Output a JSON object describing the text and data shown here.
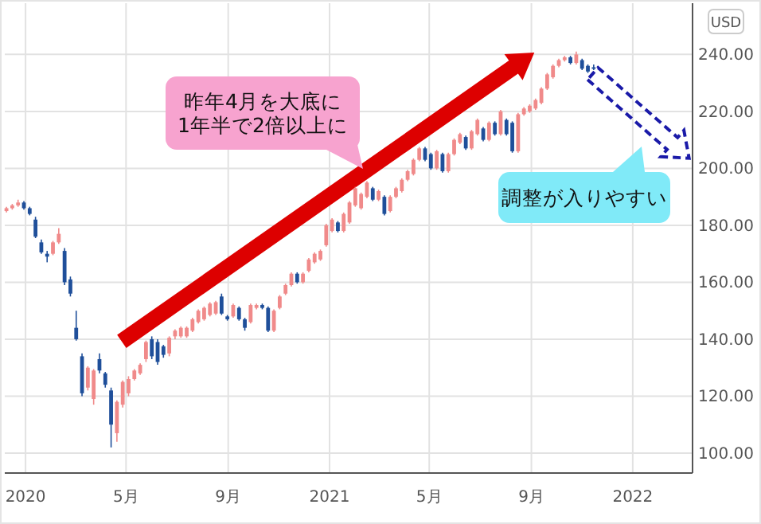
{
  "chart_data": {
    "type": "candlestick",
    "ylabel": "USD",
    "grid": true,
    "annotations": [
      "昨年4月を大底に\n1年半で2倍以上に",
      "調整が入りやすい"
    ],
    "xlim": [
      "2019-12-07",
      "2022-03-14"
    ],
    "ylim": [
      93,
      258
    ],
    "xticks": [
      {
        "value": "2020-01-01",
        "label": "2020"
      },
      {
        "value": "2020-05-01",
        "label": "5月"
      },
      {
        "value": "2020-09-01",
        "label": "9月"
      },
      {
        "value": "2021-01-01",
        "label": "2021"
      },
      {
        "value": "2021-05-01",
        "label": "5月"
      },
      {
        "value": "2021-09-01",
        "label": "9月"
      },
      {
        "value": "2022-01-01",
        "label": "2022"
      }
    ],
    "yticks": [
      {
        "value": 100,
        "label": "100.00"
      },
      {
        "value": 120,
        "label": "120.00"
      },
      {
        "value": 140,
        "label": "140.00"
      },
      {
        "value": 160,
        "label": "160.00"
      },
      {
        "value": 180,
        "label": "180.00"
      },
      {
        "value": 200,
        "label": "200.00"
      },
      {
        "value": 220,
        "label": "220.00"
      },
      {
        "value": 240,
        "label": "240.00"
      }
    ],
    "x": [
      "2019-12-09",
      "2019-12-16",
      "2019-12-23",
      "2019-12-30",
      "2020-01-06",
      "2020-01-13",
      "2020-01-20",
      "2020-01-27",
      "2020-02-03",
      "2020-02-10",
      "2020-02-17",
      "2020-02-24",
      "2020-03-02",
      "2020-03-09",
      "2020-03-16",
      "2020-03-23",
      "2020-03-30",
      "2020-04-06",
      "2020-04-13",
      "2020-04-20",
      "2020-04-27",
      "2020-05-04",
      "2020-05-11",
      "2020-05-18",
      "2020-05-25",
      "2020-06-01",
      "2020-06-08",
      "2020-06-15",
      "2020-06-22",
      "2020-06-29",
      "2020-07-06",
      "2020-07-13",
      "2020-07-20",
      "2020-07-27",
      "2020-08-03",
      "2020-08-10",
      "2020-08-17",
      "2020-08-24",
      "2020-08-31",
      "2020-09-07",
      "2020-09-14",
      "2020-09-21",
      "2020-09-28",
      "2020-10-05",
      "2020-10-12",
      "2020-10-19",
      "2020-10-26",
      "2020-11-02",
      "2020-11-09",
      "2020-11-16",
      "2020-11-23",
      "2020-11-30",
      "2020-12-07",
      "2020-12-14",
      "2020-12-21",
      "2020-12-28",
      "2021-01-04",
      "2021-01-11",
      "2021-01-18",
      "2021-01-25",
      "2021-02-01",
      "2021-02-08",
      "2021-02-15",
      "2021-02-22",
      "2021-03-01",
      "2021-03-08",
      "2021-03-15",
      "2021-03-22",
      "2021-03-29",
      "2021-04-05",
      "2021-04-12",
      "2021-04-19",
      "2021-04-26",
      "2021-05-03",
      "2021-05-10",
      "2021-05-17",
      "2021-05-24",
      "2021-05-31",
      "2021-06-07",
      "2021-06-14",
      "2021-06-21",
      "2021-06-28",
      "2021-07-05",
      "2021-07-12",
      "2021-07-19",
      "2021-07-26",
      "2021-08-02",
      "2021-08-09",
      "2021-08-16",
      "2021-08-23",
      "2021-08-30",
      "2021-09-06",
      "2021-09-13",
      "2021-09-20",
      "2021-09-27",
      "2021-10-04",
      "2021-10-11",
      "2021-10-18",
      "2021-10-25",
      "2021-11-01",
      "2021-11-08",
      "2021-11-15"
    ],
    "ohlc": [
      [
        185,
        186.5,
        184.5,
        186
      ],
      [
        186,
        187.5,
        185.5,
        187
      ],
      [
        187,
        189,
        186.5,
        188
      ],
      [
        188,
        188.5,
        185.5,
        186
      ],
      [
        186,
        186.5,
        183.5,
        184
      ],
      [
        182,
        183,
        175.5,
        176
      ],
      [
        174,
        175,
        170,
        170.5
      ],
      [
        170,
        171,
        167,
        169
      ],
      [
        170,
        174.5,
        169.5,
        174
      ],
      [
        174,
        179,
        173.5,
        177
      ],
      [
        171,
        172,
        159,
        160
      ],
      [
        161,
        162,
        155,
        156
      ],
      [
        144,
        150,
        139.5,
        140
      ],
      [
        134,
        135,
        120,
        121
      ],
      [
        123,
        130.5,
        122,
        130
      ],
      [
        119,
        129.5,
        117,
        129
      ],
      [
        133,
        135,
        128,
        129
      ],
      [
        128,
        128.5,
        123,
        124
      ],
      [
        122,
        123,
        102,
        110
      ],
      [
        107,
        118.5,
        104,
        118
      ],
      [
        117,
        125.5,
        116,
        125
      ],
      [
        121,
        127,
        120,
        126
      ],
      [
        126,
        129.5,
        125.5,
        129
      ],
      [
        128,
        131.5,
        127.5,
        131
      ],
      [
        133,
        139.5,
        132,
        139
      ],
      [
        140,
        141,
        133,
        134
      ],
      [
        139,
        140,
        131,
        132
      ],
      [
        137.5,
        138,
        133.5,
        134.5
      ],
      [
        135,
        141,
        134,
        140.5
      ],
      [
        141,
        143.5,
        140,
        143
      ],
      [
        141,
        144.5,
        140.5,
        144
      ],
      [
        141,
        144.5,
        140.5,
        144
      ],
      [
        143,
        147.5,
        142.5,
        147
      ],
      [
        146,
        150.5,
        145.5,
        150
      ],
      [
        147,
        151.5,
        146.5,
        151
      ],
      [
        148.5,
        153,
        148,
        152.5
      ],
      [
        149,
        153.5,
        148.5,
        153
      ],
      [
        155,
        156,
        148.5,
        149
      ],
      [
        148,
        148.5,
        146.5,
        147
      ],
      [
        148,
        152.5,
        147.5,
        152
      ],
      [
        151,
        151.5,
        146.5,
        147
      ],
      [
        147,
        147.5,
        143,
        144
      ],
      [
        146,
        152.5,
        145.5,
        152
      ],
      [
        151,
        152.5,
        150.5,
        152
      ],
      [
        152,
        152.5,
        150.5,
        151
      ],
      [
        151,
        151.5,
        142.5,
        143
      ],
      [
        143,
        150.5,
        142.5,
        150
      ],
      [
        151,
        155.5,
        150.5,
        155
      ],
      [
        156,
        159.5,
        155.5,
        159
      ],
      [
        159,
        163.5,
        158.5,
        163
      ],
      [
        163,
        163.5,
        159.5,
        160
      ],
      [
        160,
        163.5,
        159.5,
        163
      ],
      [
        164,
        168.5,
        163.5,
        168
      ],
      [
        167,
        170.5,
        166.5,
        170
      ],
      [
        168,
        171.5,
        167.5,
        171
      ],
      [
        173,
        180.5,
        172.5,
        180
      ],
      [
        178,
        182.5,
        177.5,
        182
      ],
      [
        181,
        181.5,
        177.5,
        178
      ],
      [
        178,
        184.5,
        177.5,
        184
      ],
      [
        181,
        188.5,
        180.5,
        188
      ],
      [
        187,
        193.5,
        186.5,
        193
      ],
      [
        186,
        191.5,
        185.5,
        191
      ],
      [
        190,
        195.5,
        189.5,
        195
      ],
      [
        193,
        193.5,
        188.5,
        189
      ],
      [
        189,
        192.5,
        188.5,
        192
      ],
      [
        190,
        190.5,
        183.5,
        184
      ],
      [
        185,
        190.5,
        184.5,
        190
      ],
      [
        190,
        193.5,
        189.5,
        193
      ],
      [
        192,
        196.5,
        191.5,
        196
      ],
      [
        196,
        199.5,
        195.5,
        199
      ],
      [
        198,
        203.5,
        197.5,
        203
      ],
      [
        203,
        207.5,
        202.5,
        207
      ],
      [
        207,
        207.5,
        202.5,
        203
      ],
      [
        205,
        205.5,
        199.5,
        200
      ],
      [
        200,
        206.5,
        199.5,
        206
      ],
      [
        205,
        205.5,
        198.5,
        199
      ],
      [
        199,
        205.5,
        198.5,
        205
      ],
      [
        205,
        210.5,
        204.5,
        210
      ],
      [
        209,
        212.5,
        208.5,
        212
      ],
      [
        211,
        211.5,
        206.5,
        207
      ],
      [
        207,
        213.5,
        206.5,
        213
      ],
      [
        212,
        217.5,
        211.5,
        217
      ],
      [
        214,
        214.5,
        209.5,
        210
      ],
      [
        210,
        216.5,
        209.5,
        216
      ],
      [
        216,
        216.5,
        211.5,
        212
      ],
      [
        212,
        220.5,
        211.5,
        220
      ],
      [
        217,
        217.5,
        211.5,
        212
      ],
      [
        216,
        216.5,
        205.5,
        206
      ],
      [
        206,
        219.5,
        205.5,
        219
      ],
      [
        219,
        221.5,
        218.5,
        221
      ],
      [
        220,
        222.5,
        219.5,
        222
      ],
      [
        221,
        224.5,
        220.5,
        224
      ],
      [
        223,
        228.5,
        222.5,
        228
      ],
      [
        228,
        233.5,
        227.5,
        233
      ],
      [
        232,
        236.5,
        231.5,
        236
      ],
      [
        236,
        238.5,
        235.5,
        238
      ],
      [
        238,
        239.5,
        237.5,
        239
      ],
      [
        239,
        239.5,
        236.5,
        237
      ],
      [
        237,
        241,
        236.5,
        240
      ],
      [
        238,
        238.5,
        234.5,
        235
      ],
      [
        236,
        236.5,
        233.5,
        234
      ],
      [
        235.5,
        236.5,
        234.5,
        235
      ]
    ]
  }
}
